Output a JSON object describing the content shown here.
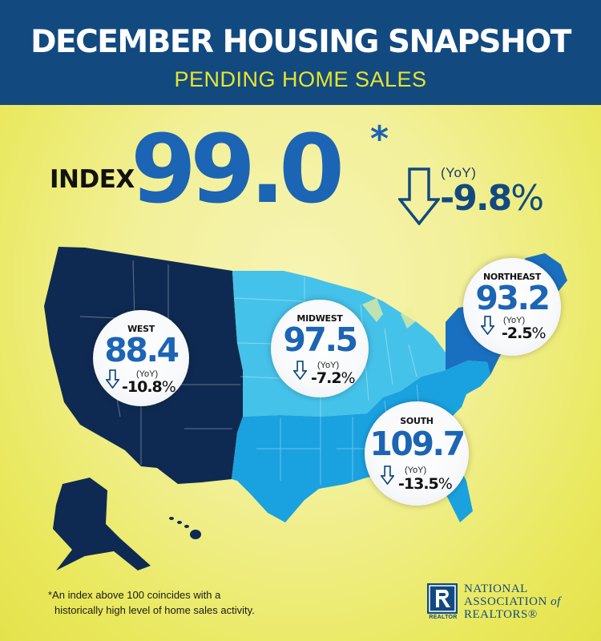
{
  "header": {
    "title": "DECEMBER HOUSING SNAPSHOT",
    "subtitle": "PENDING HOME SALES"
  },
  "national": {
    "label": "INDEX",
    "value": "99.0",
    "asterisk": "*",
    "yoy_label": "(YoY)",
    "yoy_value": "-9.8",
    "yoy_unit": "%",
    "direction": "down"
  },
  "regions": [
    {
      "name": "WEST",
      "value": "88.4",
      "yoy_label": "(YoY)",
      "yoy_value": "-10.8",
      "yoy_unit": "%",
      "direction": "down",
      "color": "#0f2a52"
    },
    {
      "name": "MIDWEST",
      "value": "97.5",
      "yoy_label": "(YoY)",
      "yoy_value": "-7.2",
      "yoy_unit": "%",
      "direction": "down",
      "color": "#45c2ea"
    },
    {
      "name": "NORTHEAST",
      "value": "93.2",
      "yoy_label": "(YoY)",
      "yoy_value": "-2.5",
      "yoy_unit": "%",
      "direction": "down",
      "color": "#1a70c0"
    },
    {
      "name": "SOUTH",
      "value": "109.7",
      "yoy_label": "(YoY)",
      "yoy_value": "-13.5",
      "yoy_unit": "%",
      "direction": "down",
      "color": "#1aa2e0"
    }
  ],
  "footnote": {
    "line1": "*An index above 100 coincides with a",
    "line2": "historically high level of home sales activity."
  },
  "logo": {
    "icon": "realtor-r-logo-icon",
    "tag": "REALTOR",
    "line1": "NATIONAL",
    "line2a": "ASSOCIATION",
    "line2b": "of",
    "line3": "REALTORS®"
  },
  "colors": {
    "header_bg": "#124a80",
    "subtitle": "#e8e52c",
    "accent_blue": "#1c64b4",
    "background": "#f2f098"
  }
}
